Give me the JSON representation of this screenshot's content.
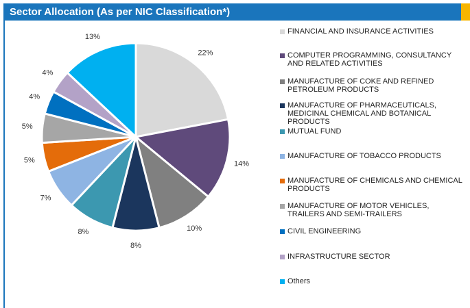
{
  "chart_data": {
    "type": "pie",
    "title": "Sector Allocation (As per NIC Classification*)",
    "categories": [
      "FINANCIAL AND INSURANCE ACTIVITIES",
      "COMPUTER PROGRAMMING, CONSULTANCY AND RELATED ACTIVITIES",
      "MANUFACTURE OF COKE AND REFINED PETROLEUM PRODUCTS",
      "MANUFACTURE OF PHARMACEUTICALS, MEDICINAL CHEMICAL AND BOTANICAL PRODUCTS",
      "MUTUAL FUND",
      "MANUFACTURE OF TOBACCO PRODUCTS",
      "MANUFACTURE OF CHEMICALS AND CHEMICAL PRODUCTS",
      "MANUFACTURE OF MOTOR VEHICLES, TRAILERS AND SEMI-TRAILERS",
      "CIVIL ENGINEERING",
      "INFRASTRUCTURE SECTOR",
      "Others"
    ],
    "values": [
      22,
      14,
      10,
      8,
      8,
      7,
      5,
      5,
      4,
      4,
      13
    ],
    "value_labels": [
      "22%",
      "14%",
      "10%",
      "8%",
      "8%",
      "7%",
      "5%",
      "5%",
      "4%",
      "4%",
      "13%"
    ],
    "colors": [
      "#d9d9d9",
      "#5f4a7b",
      "#808080",
      "#1b365d",
      "#3c98b0",
      "#8eb4e3",
      "#e46c0a",
      "#a6a6a6",
      "#0070c0",
      "#b3a2c7",
      "#00b0f0"
    ],
    "legend": "right"
  }
}
